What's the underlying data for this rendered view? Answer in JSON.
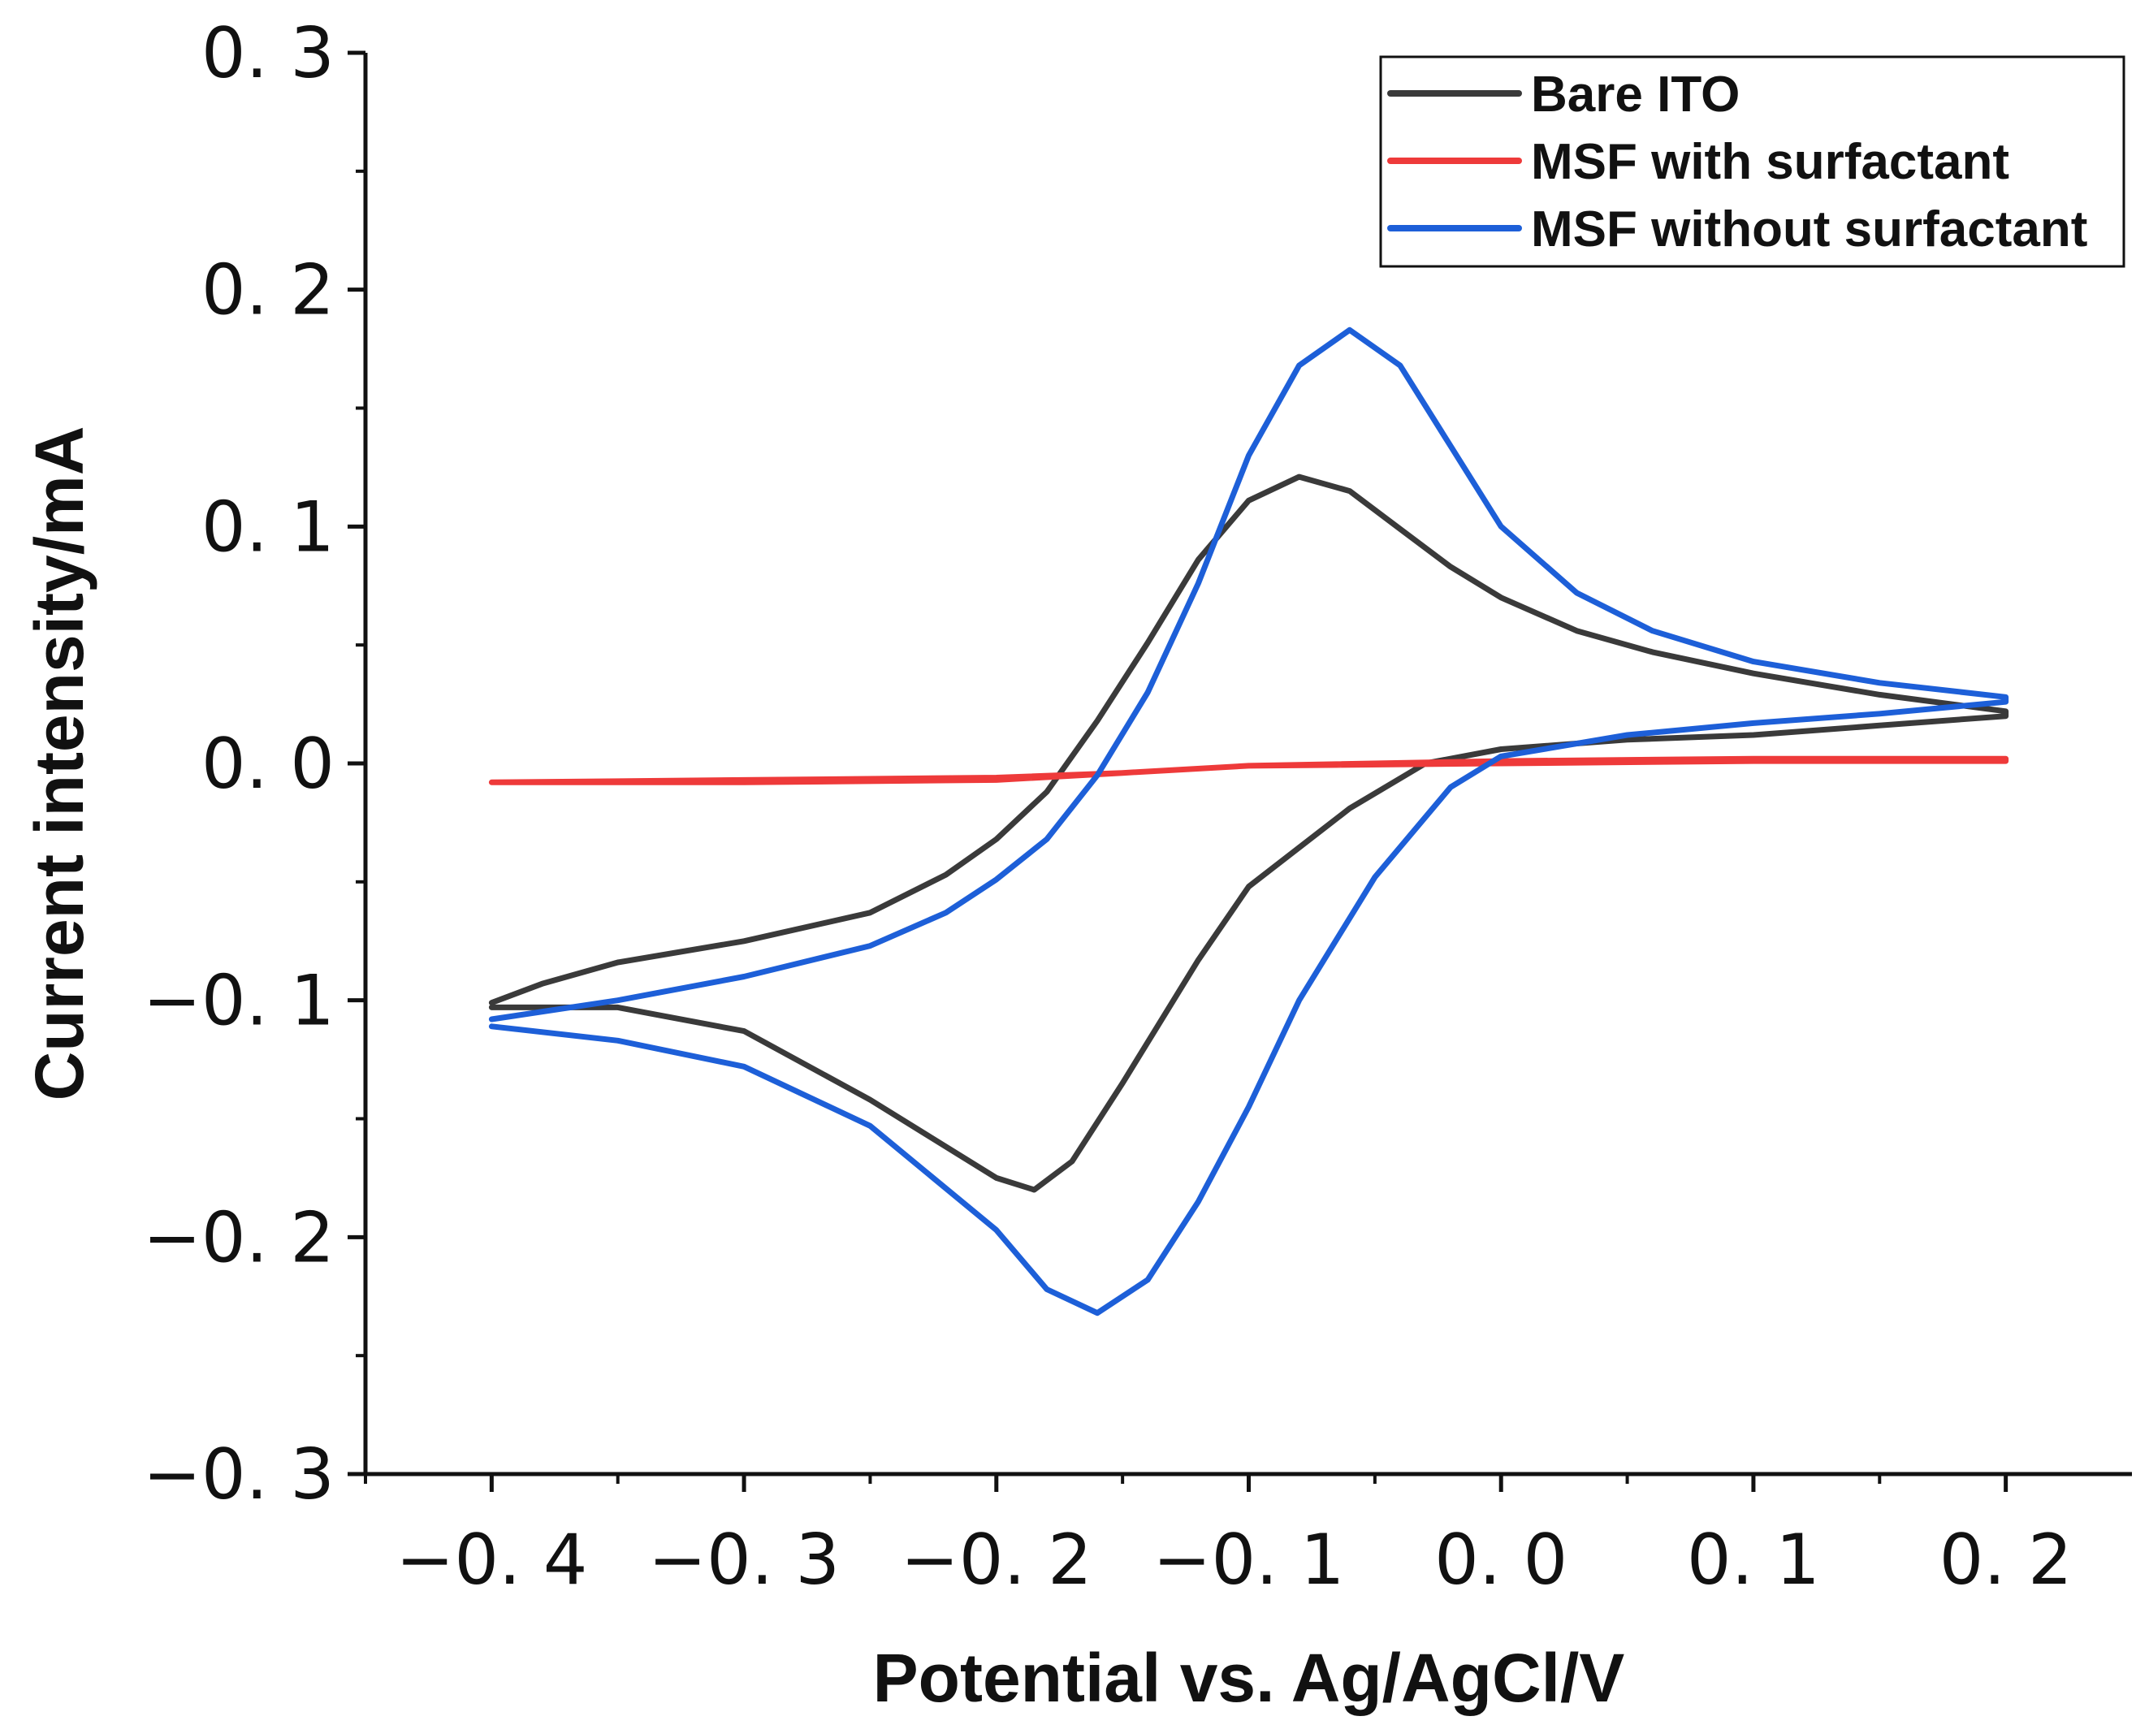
{
  "chart_data": {
    "type": "line",
    "title": "",
    "xlabel": "Potential vs. Ag/AgCl/V",
    "ylabel": "Current intensity/mA",
    "xlim": [
      -0.45,
      0.25
    ],
    "ylim": [
      -0.3,
      0.3
    ],
    "x_ticks": [
      -0.4,
      -0.3,
      -0.2,
      -0.1,
      0.0,
      0.1,
      0.2
    ],
    "x_tick_labels": [
      "−0. 4",
      "−0. 3",
      "−0. 2",
      "−0. 1",
      "0. 0",
      "0. 1",
      "0. 2"
    ],
    "y_ticks": [
      0.3,
      0.2,
      0.1,
      0.0,
      -0.1,
      -0.2,
      -0.3
    ],
    "y_tick_labels": [
      "0. 3",
      "0. 2",
      "0. 1",
      "0. 0",
      "−0. 1",
      "−0. 2",
      "−0. 3"
    ],
    "grid": false,
    "legend_position": "top-right",
    "series": [
      {
        "name": "Bare ITO",
        "color": "#3a3a3a",
        "points": [
          [
            -0.4,
            -0.101
          ],
          [
            -0.38,
            -0.093
          ],
          [
            -0.35,
            -0.084
          ],
          [
            -0.3,
            -0.075
          ],
          [
            -0.25,
            -0.063
          ],
          [
            -0.22,
            -0.047
          ],
          [
            -0.2,
            -0.032
          ],
          [
            -0.18,
            -0.012
          ],
          [
            -0.16,
            0.018
          ],
          [
            -0.14,
            0.051
          ],
          [
            -0.12,
            0.086
          ],
          [
            -0.1,
            0.111
          ],
          [
            -0.08,
            0.121
          ],
          [
            -0.06,
            0.115
          ],
          [
            -0.04,
            0.099
          ],
          [
            -0.02,
            0.083
          ],
          [
            0.0,
            0.07
          ],
          [
            0.03,
            0.056
          ],
          [
            0.06,
            0.047
          ],
          [
            0.1,
            0.038
          ],
          [
            0.15,
            0.029
          ],
          [
            0.2,
            0.022
          ],
          [
            0.2,
            0.02
          ],
          [
            0.15,
            0.016
          ],
          [
            0.1,
            0.012
          ],
          [
            0.05,
            0.01
          ],
          [
            0.0,
            0.006
          ],
          [
            -0.03,
            0.0
          ],
          [
            -0.06,
            -0.019
          ],
          [
            -0.1,
            -0.052
          ],
          [
            -0.12,
            -0.083
          ],
          [
            -0.15,
            -0.135
          ],
          [
            -0.17,
            -0.168
          ],
          [
            -0.185,
            -0.18
          ],
          [
            -0.2,
            -0.175
          ],
          [
            -0.25,
            -0.142
          ],
          [
            -0.3,
            -0.113
          ],
          [
            -0.35,
            -0.103
          ],
          [
            -0.4,
            -0.103
          ]
        ]
      },
      {
        "name": "MSF with surfactant",
        "color": "#ee3a3a",
        "points": [
          [
            -0.4,
            -0.008
          ],
          [
            -0.3,
            -0.007
          ],
          [
            -0.2,
            -0.006
          ],
          [
            -0.15,
            -0.004
          ],
          [
            -0.1,
            -0.001
          ],
          [
            0.0,
            0.001
          ],
          [
            0.1,
            0.002
          ],
          [
            0.2,
            0.002
          ],
          [
            0.2,
            0.001
          ],
          [
            0.1,
            0.001
          ],
          [
            0.0,
            0.0
          ],
          [
            -0.1,
            -0.001
          ],
          [
            -0.15,
            -0.004
          ],
          [
            -0.2,
            -0.007
          ],
          [
            -0.3,
            -0.008
          ],
          [
            -0.4,
            -0.008
          ]
        ]
      },
      {
        "name": "MSF without surfactant",
        "color": "#1d5fd8",
        "points": [
          [
            -0.4,
            -0.108
          ],
          [
            -0.35,
            -0.1
          ],
          [
            -0.3,
            -0.09
          ],
          [
            -0.25,
            -0.077
          ],
          [
            -0.22,
            -0.063
          ],
          [
            -0.2,
            -0.049
          ],
          [
            -0.18,
            -0.032
          ],
          [
            -0.16,
            -0.005
          ],
          [
            -0.14,
            0.03
          ],
          [
            -0.12,
            0.076
          ],
          [
            -0.1,
            0.13
          ],
          [
            -0.08,
            0.168
          ],
          [
            -0.06,
            0.183
          ],
          [
            -0.04,
            0.168
          ],
          [
            -0.02,
            0.134
          ],
          [
            0.0,
            0.1
          ],
          [
            0.03,
            0.072
          ],
          [
            0.06,
            0.056
          ],
          [
            0.1,
            0.043
          ],
          [
            0.15,
            0.034
          ],
          [
            0.2,
            0.028
          ],
          [
            0.2,
            0.026
          ],
          [
            0.15,
            0.021
          ],
          [
            0.1,
            0.017
          ],
          [
            0.05,
            0.012
          ],
          [
            0.0,
            0.003
          ],
          [
            -0.02,
            -0.01
          ],
          [
            -0.05,
            -0.048
          ],
          [
            -0.08,
            -0.1
          ],
          [
            -0.1,
            -0.145
          ],
          [
            -0.12,
            -0.185
          ],
          [
            -0.14,
            -0.218
          ],
          [
            -0.16,
            -0.232
          ],
          [
            -0.18,
            -0.222
          ],
          [
            -0.2,
            -0.197
          ],
          [
            -0.25,
            -0.153
          ],
          [
            -0.3,
            -0.128
          ],
          [
            -0.35,
            -0.117
          ],
          [
            -0.4,
            -0.111
          ]
        ]
      }
    ]
  }
}
